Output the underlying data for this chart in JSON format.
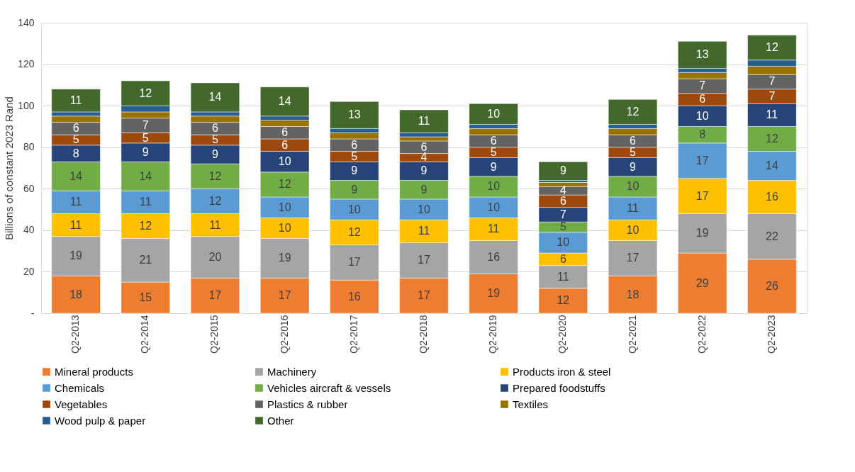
{
  "chart_data": {
    "type": "bar",
    "stacked": true,
    "ylabel": "Billions of constant 2023 Rand",
    "categories": [
      "Q2-2013",
      "Q2-2014",
      "Q2-2015",
      "Q2-2016",
      "Q2-2017",
      "Q2-2018",
      "Q2-2019",
      "Q2-2020",
      "Q2-2021",
      "Q2-2022",
      "Q2-2023"
    ],
    "ylim": [
      0,
      140
    ],
    "yticks": [
      {
        "value": 0,
        "label": "-"
      },
      20,
      40,
      60,
      80,
      100,
      120,
      140
    ],
    "grid": "y",
    "legend": "bottom",
    "series": [
      {
        "name": "Mineral products",
        "color": "#ed7d31",
        "values": [
          18,
          15,
          17,
          17,
          16,
          17,
          19,
          12,
          18,
          29,
          26
        ],
        "value_labels": [
          "18",
          "15",
          "17",
          "17",
          "16",
          "17",
          "19",
          "12",
          "18",
          "29",
          "26"
        ]
      },
      {
        "name": "Machinery",
        "color": "#a5a5a5",
        "values": [
          19,
          21,
          20,
          19,
          17,
          17,
          16,
          11,
          17,
          19,
          22
        ],
        "value_labels": [
          "19",
          "21",
          "20",
          "19",
          "17",
          "17",
          "16",
          "11",
          "17",
          "19",
          "22"
        ]
      },
      {
        "name": "Products iron & steel",
        "color": "#ffc000",
        "values": [
          11,
          12,
          11,
          10,
          12,
          11,
          11,
          6,
          10,
          17,
          16
        ],
        "value_labels": [
          "11",
          "12",
          "11",
          "10",
          "12",
          "11",
          "11",
          "6",
          "10",
          "17",
          "16"
        ]
      },
      {
        "name": "Chemicals",
        "color": "#5b9bd5",
        "values": [
          11,
          11,
          12,
          10,
          10,
          10,
          10,
          10,
          11,
          17,
          14
        ],
        "value_labels": [
          "11",
          "11",
          "12",
          "10",
          "10",
          "10",
          "10",
          "10",
          "11",
          "17",
          "14"
        ]
      },
      {
        "name": "Vehicles aircraft & vessels",
        "color": "#70ad47",
        "values": [
          14,
          14,
          12,
          12,
          9,
          9,
          10,
          5,
          10,
          8,
          12
        ],
        "value_labels": [
          "14",
          "14",
          "12",
          "12",
          "9",
          "9",
          "10",
          "5",
          "10",
          "8",
          "12"
        ]
      },
      {
        "name": "Prepared foodstuffs",
        "color": "#264478",
        "values": [
          8,
          9,
          9,
          10,
          9,
          9,
          9,
          7,
          9,
          10,
          11
        ],
        "value_labels": [
          "8",
          "9",
          "9",
          "10",
          "9",
          "9",
          "9",
          "7",
          "9",
          "10",
          "11"
        ]
      },
      {
        "name": "Vegetables",
        "color": "#9e480e",
        "values": [
          5,
          5,
          5,
          6,
          5,
          4,
          5,
          6,
          5,
          6,
          7
        ],
        "value_labels": [
          "5",
          "5",
          "5",
          "6",
          "5",
          "4",
          "5",
          "6",
          "5",
          "6",
          "7"
        ]
      },
      {
        "name": "Plastics & rubber",
        "color": "#636363",
        "values": [
          6,
          7,
          6,
          6,
          6,
          6,
          6,
          4,
          6,
          7,
          7
        ],
        "value_labels": [
          "6",
          "7",
          "6",
          "6",
          "6",
          "6",
          "6",
          "4",
          "6",
          "7",
          "7"
        ]
      },
      {
        "name": "Textiles",
        "color": "#997300",
        "values": [
          3,
          3,
          3,
          3,
          3,
          2,
          3,
          2,
          3,
          3,
          4
        ]
      },
      {
        "name": "Wood pulp & paper",
        "color": "#255e91",
        "values": [
          2,
          3,
          2,
          2,
          2,
          2,
          2,
          1,
          2,
          2,
          3
        ]
      },
      {
        "name": "Other",
        "color": "#43682b",
        "values": [
          11,
          12,
          14,
          14,
          13,
          11,
          10,
          9,
          12,
          13,
          12
        ],
        "value_labels": [
          "11",
          "12",
          "14",
          "14",
          "13",
          "11",
          "10",
          "9",
          "12",
          "13",
          "12"
        ]
      }
    ]
  }
}
